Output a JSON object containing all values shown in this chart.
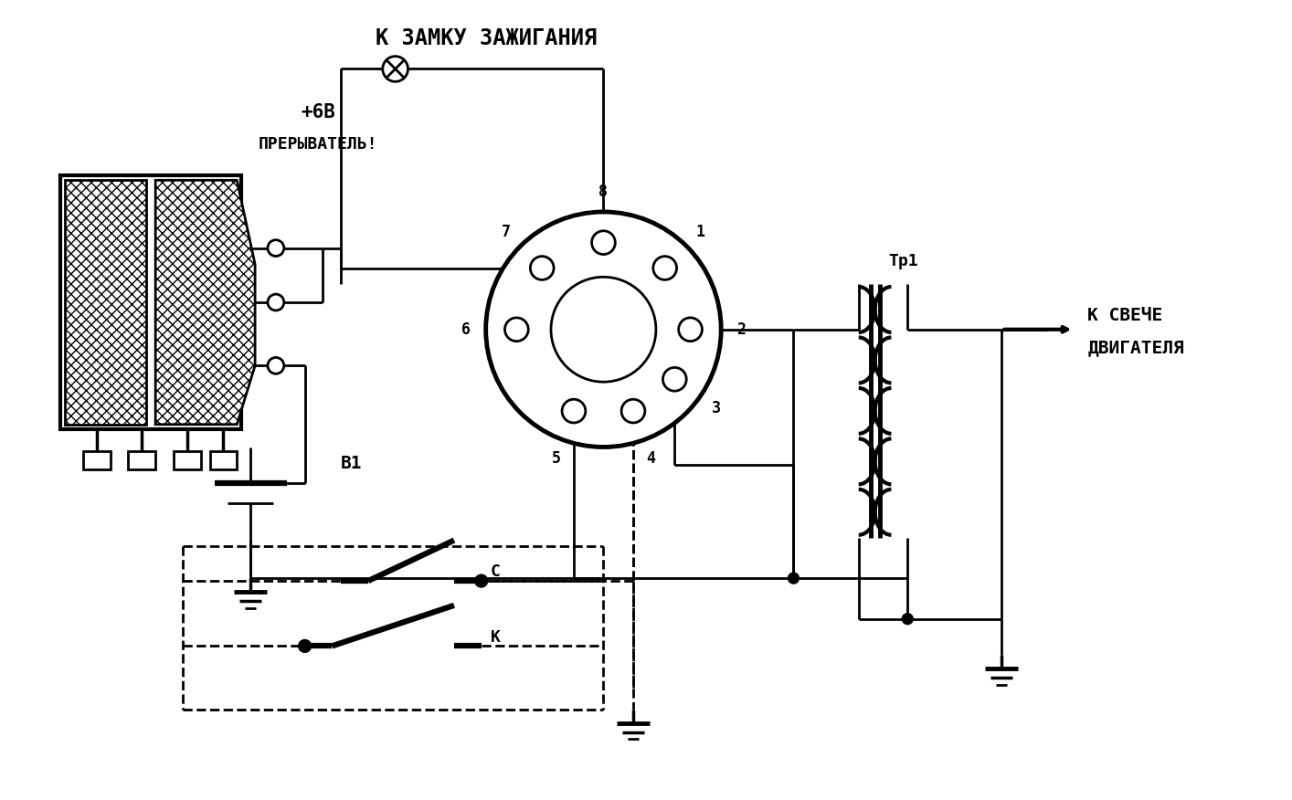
{
  "bg_color": "#ffffff",
  "lc": "#000000",
  "title": "К ЗАМКУ ЗАЖИГАНИЯ",
  "label_6v": "+6В",
  "label_preriv": "ПРЕРЫВАТЕЛЬ",
  "label_B1": "В1",
  "label_Tr1": "Тр1",
  "label_svecha1": "К СВЕЧЕ",
  "label_svecha2": "ДВИГАТЕЛЯ",
  "label_C": "С",
  "label_K": "К",
  "figsize": [
    14.14,
    8.76
  ],
  "dpi": 100
}
